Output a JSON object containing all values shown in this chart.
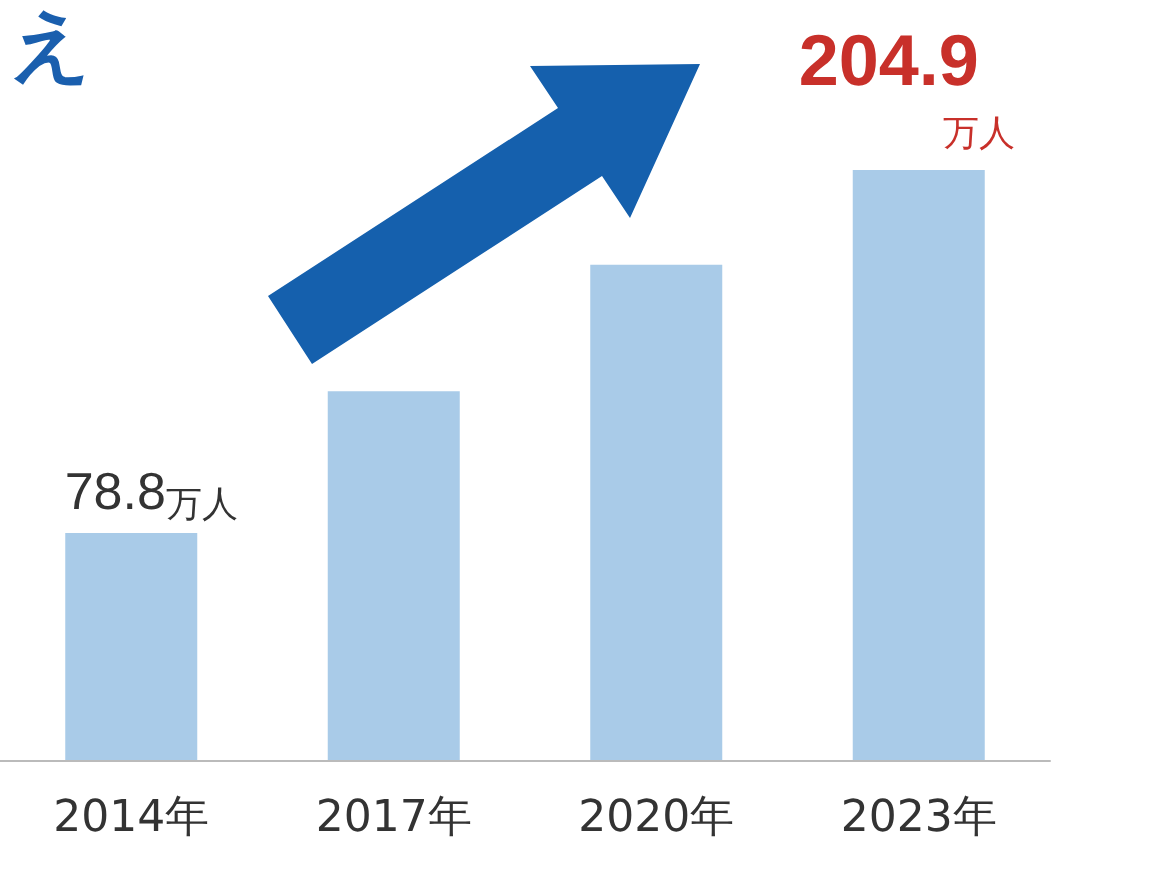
{
  "chart_data": {
    "type": "bar",
    "title": "え",
    "categories": [
      "2014年",
      "2017年",
      "2020年",
      "2023年"
    ],
    "values": [
      78.8,
      128,
      172,
      204.9
    ],
    "value_labels": [
      "78.8万人",
      null,
      null,
      "204.9万人"
    ],
    "color": "#a9cbe8"
  }
}
